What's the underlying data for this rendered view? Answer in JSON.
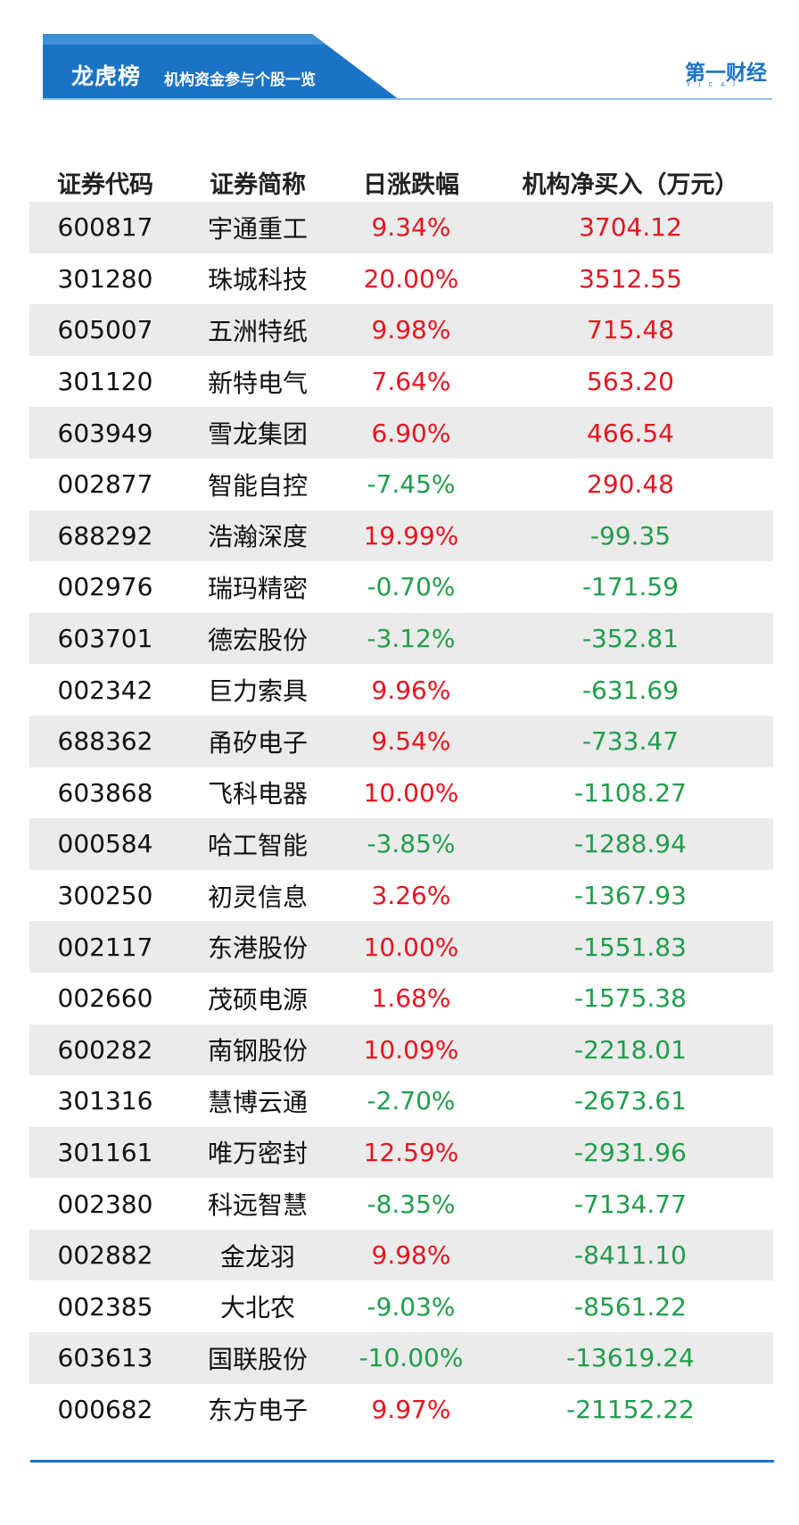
{
  "header": {
    "title": "龙虎榜",
    "subtitle": "机构资金参与个股一览",
    "logo": "第一财经",
    "logo_sub": "YICAI",
    "accent_color": "#1a73c4"
  },
  "table": {
    "columns": [
      "证券代码",
      "证券简称",
      "日涨跌幅",
      "机构净买入（万元）"
    ],
    "rows": [
      {
        "code": "600817",
        "name": "宇通重工",
        "change": "9.34%",
        "net": "3704.12"
      },
      {
        "code": "301280",
        "name": "珠城科技",
        "change": "20.00%",
        "net": "3512.55"
      },
      {
        "code": "605007",
        "name": "五洲特纸",
        "change": "9.98%",
        "net": "715.48"
      },
      {
        "code": "301120",
        "name": "新特电气",
        "change": "7.64%",
        "net": "563.20"
      },
      {
        "code": "603949",
        "name": "雪龙集团",
        "change": "6.90%",
        "net": "466.54"
      },
      {
        "code": "002877",
        "name": "智能自控",
        "change": "-7.45%",
        "net": "290.48"
      },
      {
        "code": "688292",
        "name": "浩瀚深度",
        "change": "19.99%",
        "net": "-99.35"
      },
      {
        "code": "002976",
        "name": "瑞玛精密",
        "change": "-0.70%",
        "net": "-171.59"
      },
      {
        "code": "603701",
        "name": "德宏股份",
        "change": "-3.12%",
        "net": "-352.81"
      },
      {
        "code": "002342",
        "name": "巨力索具",
        "change": "9.96%",
        "net": "-631.69"
      },
      {
        "code": "688362",
        "name": "甬矽电子",
        "change": "9.54%",
        "net": "-733.47"
      },
      {
        "code": "603868",
        "name": "飞科电器",
        "change": "10.00%",
        "net": "-1108.27"
      },
      {
        "code": "000584",
        "name": "哈工智能",
        "change": "-3.85%",
        "net": "-1288.94"
      },
      {
        "code": "300250",
        "name": "初灵信息",
        "change": "3.26%",
        "net": "-1367.93"
      },
      {
        "code": "002117",
        "name": "东港股份",
        "change": "10.00%",
        "net": "-1551.83"
      },
      {
        "code": "002660",
        "name": "茂硕电源",
        "change": "1.68%",
        "net": "-1575.38"
      },
      {
        "code": "600282",
        "name": "南钢股份",
        "change": "10.09%",
        "net": "-2218.01"
      },
      {
        "code": "301316",
        "name": "慧博云通",
        "change": "-2.70%",
        "net": "-2673.61"
      },
      {
        "code": "301161",
        "name": "唯万密封",
        "change": "12.59%",
        "net": "-2931.96"
      },
      {
        "code": "002380",
        "name": "科远智慧",
        "change": "-8.35%",
        "net": "-7134.77"
      },
      {
        "code": "002882",
        "name": "金龙羽",
        "change": "9.98%",
        "net": "-8411.10"
      },
      {
        "code": "002385",
        "name": "大北农",
        "change": "-9.03%",
        "net": "-8561.22"
      },
      {
        "code": "603613",
        "name": "国联股份",
        "change": "-10.00%",
        "net": "-13619.24"
      },
      {
        "code": "000682",
        "name": "东方电子",
        "change": "9.97%",
        "net": "-21152.22"
      }
    ]
  }
}
